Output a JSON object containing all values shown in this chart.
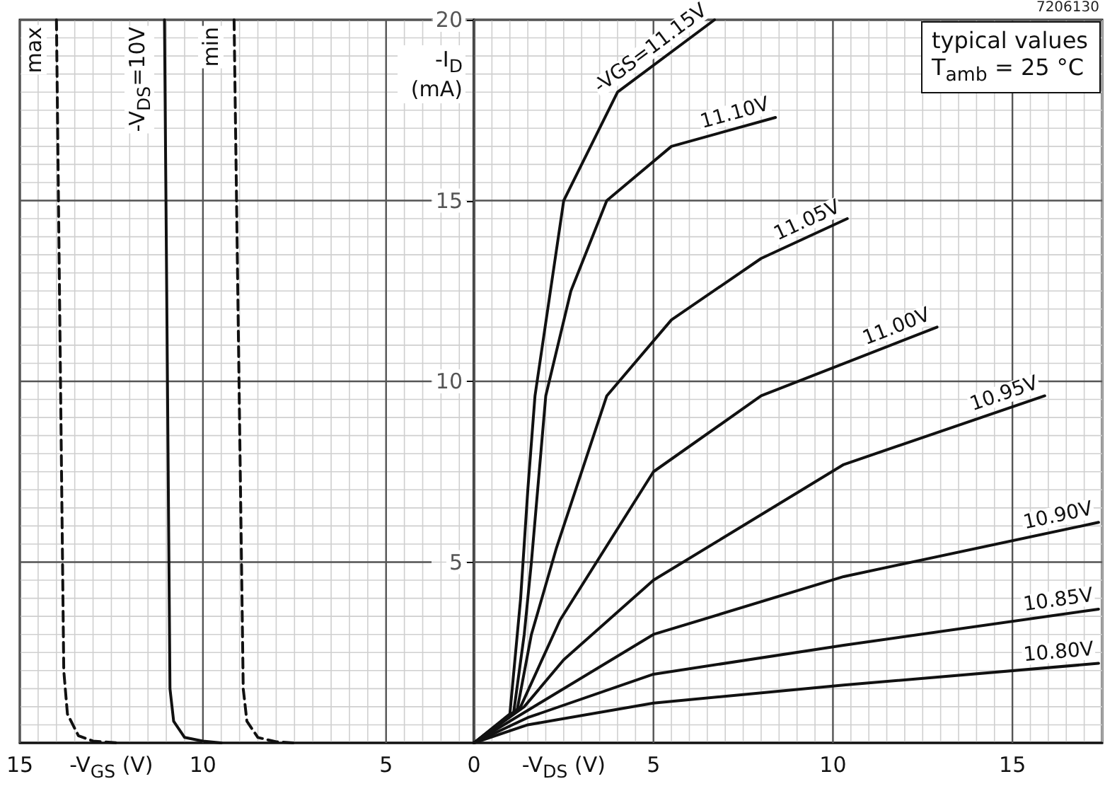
{
  "chart_data": [
    {
      "type": "line",
      "xlabel": "-V$_{GS}$ (V)",
      "ylabel": "-I$_{D}$ (mA)",
      "xlim": [
        15,
        2.6
      ],
      "xticks": [
        15,
        10,
        5
      ],
      "ylim": [
        0,
        20
      ],
      "yticks": [
        5,
        10,
        15,
        20
      ],
      "grid": true,
      "series": [
        {
          "name": "max",
          "color": "#111111",
          "line_style": "dashed",
          "x": [
            14.0,
            13.8,
            13.7,
            13.4,
            13.0,
            12.3
          ],
          "values": [
            20,
            2,
            0.8,
            0.2,
            0.05,
            0
          ]
        },
        {
          "name": "-V$_{DS}$=10V",
          "color": "#111111",
          "line_style": "solid",
          "x": [
            11.05,
            10.9,
            10.8,
            10.5,
            10.0,
            9.5
          ],
          "values": [
            20,
            1.5,
            0.6,
            0.15,
            0.05,
            0
          ]
        },
        {
          "name": "min",
          "color": "#111111",
          "line_style": "dashed",
          "x": [
            9.15,
            8.9,
            8.8,
            8.5,
            8.0,
            7.5
          ],
          "values": [
            20,
            1.5,
            0.6,
            0.15,
            0.03,
            0
          ]
        }
      ]
    },
    {
      "type": "line",
      "xlabel": "-V$_{DS}$ (V)",
      "xlim": [
        0,
        17.5
      ],
      "xticks": [
        0,
        5,
        10,
        15
      ],
      "ylim": [
        0,
        20
      ],
      "yticks": [
        5,
        10,
        15,
        20
      ],
      "grid": true,
      "tick_labels": "x",
      "annotations": [
        "typical values",
        "T$_{amb}$ = 25 °C",
        "7206130"
      ],
      "series": [
        {
          "name": "-VGS=11.15V",
          "color": "#111111",
          "x": [
            0,
            1.0,
            1.3,
            1.5,
            1.7,
            2.5,
            4,
            6.7
          ],
          "values": [
            0,
            0.8,
            4,
            7,
            9.6,
            15,
            18,
            20
          ]
        },
        {
          "name": "11.10V",
          "color": "#111111",
          "x": [
            0,
            1.1,
            1.4,
            1.6,
            2,
            2.7,
            3.7,
            5.5,
            8.4
          ],
          "values": [
            0,
            0.8,
            3,
            5,
            9.6,
            12.5,
            15,
            16.5,
            17.3
          ]
        },
        {
          "name": "11.05V",
          "color": "#111111",
          "x": [
            0,
            1.2,
            1.6,
            2.3,
            3.7,
            5.5,
            8,
            10.4
          ],
          "values": [
            0,
            0.9,
            3,
            5.4,
            9.6,
            11.7,
            13.4,
            14.5
          ]
        },
        {
          "name": "11.00V",
          "color": "#111111",
          "x": [
            0,
            1.3,
            2.4,
            5,
            8,
            12.9
          ],
          "values": [
            0,
            1,
            3.4,
            7.5,
            9.6,
            11.5
          ]
        },
        {
          "name": "10.95V",
          "color": "#111111",
          "x": [
            0,
            1.4,
            2.5,
            5,
            10.3,
            15.9
          ],
          "values": [
            0,
            1,
            2.3,
            4.5,
            7.7,
            9.6
          ]
        },
        {
          "name": "10.90V",
          "color": "#111111",
          "x": [
            0,
            1.5,
            5,
            10.3,
            17.4
          ],
          "values": [
            0,
            0.9,
            3,
            4.6,
            6.1
          ]
        },
        {
          "name": "10.85V",
          "color": "#111111",
          "x": [
            0,
            1.5,
            5,
            10.3,
            17.4
          ],
          "values": [
            0,
            0.7,
            1.9,
            2.7,
            3.7
          ]
        },
        {
          "name": "10.80V",
          "color": "#111111",
          "x": [
            0,
            1.5,
            5,
            10.3,
            17.4
          ],
          "values": [
            0,
            0.5,
            1.1,
            1.6,
            2.2
          ]
        }
      ]
    }
  ]
}
